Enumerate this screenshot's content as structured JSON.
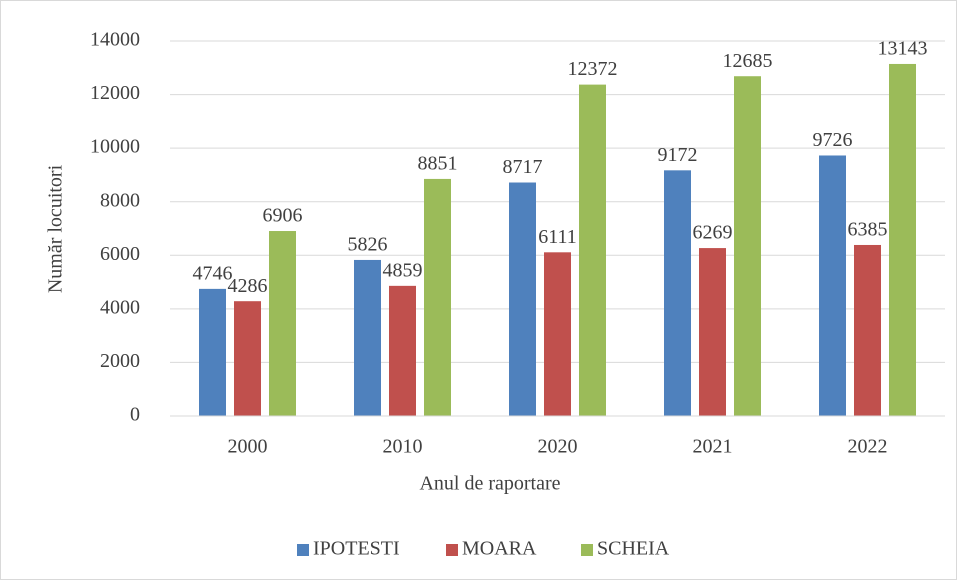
{
  "chart_data": {
    "type": "bar",
    "xlabel": "Anul de raportare",
    "ylabel": "Număr locuitori",
    "categories": [
      "2000",
      "2010",
      "2020",
      "2021",
      "2022"
    ],
    "series": [
      {
        "name": "IPOTESTI",
        "color": "#4f81bd",
        "values": [
          4746,
          5826,
          8717,
          9172,
          9726
        ]
      },
      {
        "name": "MOARA",
        "color": "#c0504d",
        "values": [
          4286,
          4859,
          6111,
          6269,
          6385
        ]
      },
      {
        "name": "SCHEIA",
        "color": "#9bbb59",
        "values": [
          6906,
          8851,
          12372,
          12685,
          13143
        ]
      }
    ],
    "ylim": [
      0,
      14000
    ],
    "yticks": [
      0,
      2000,
      4000,
      6000,
      8000,
      10000,
      12000,
      14000
    ],
    "grid": true,
    "legend": "bottom"
  }
}
